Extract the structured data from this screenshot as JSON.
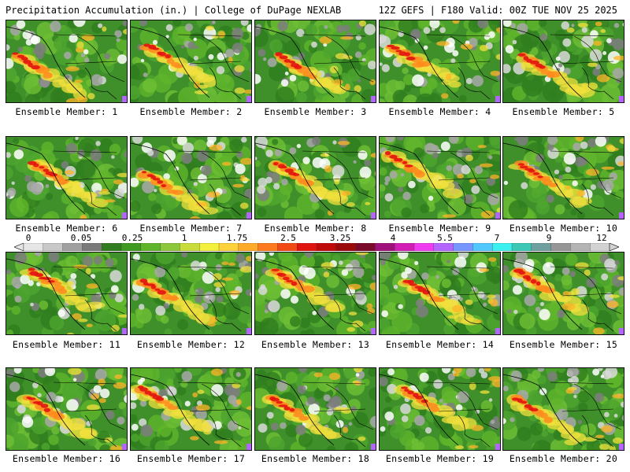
{
  "header": {
    "left": "Precipitation Accumulation (in.) | College of DuPage NEXLAB",
    "right": "12Z GEFS | F180 Valid: 00Z TUE NOV 25 2025"
  },
  "panels": [
    {
      "label": "Ensemble Member: 1"
    },
    {
      "label": "Ensemble Member: 2"
    },
    {
      "label": "Ensemble Member: 3"
    },
    {
      "label": "Ensemble Member: 4"
    },
    {
      "label": "Ensemble Member: 5"
    },
    {
      "label": "Ensemble Member: 6"
    },
    {
      "label": "Ensemble Member: 7"
    },
    {
      "label": "Ensemble Member: 8"
    },
    {
      "label": "Ensemble Member: 9"
    },
    {
      "label": "Ensemble Member: 10"
    },
    {
      "label": "Ensemble Member: 11"
    },
    {
      "label": "Ensemble Member: 12"
    },
    {
      "label": "Ensemble Member: 13"
    },
    {
      "label": "Ensemble Member: 14"
    },
    {
      "label": "Ensemble Member: 15"
    },
    {
      "label": "Ensemble Member: 16"
    },
    {
      "label": "Ensemble Member: 17"
    },
    {
      "label": "Ensemble Member: 18"
    },
    {
      "label": "Ensemble Member: 19"
    },
    {
      "label": "Ensemble Member: 20"
    }
  ],
  "colorbar": {
    "tick_labels": [
      "0",
      "0.05",
      "0.25",
      "1",
      "1.75",
      "2.5",
      "3.25",
      "4",
      "5.5",
      "7",
      "9",
      "12"
    ],
    "colors": [
      "#e6e6e6",
      "#c8c8c8",
      "#a0a0a0",
      "#7a7a7a",
      "#2f7d1e",
      "#3f9a22",
      "#5fb52a",
      "#8cc63a",
      "#c8dc3c",
      "#f2f03c",
      "#ffd23c",
      "#ffaa28",
      "#ff7a1e",
      "#f24a14",
      "#e0140f",
      "#c00a0a",
      "#9a0a0a",
      "#7a0a2a",
      "#a0107a",
      "#d21eb4",
      "#f03cf0",
      "#b464ff",
      "#7896ff",
      "#50c8ff",
      "#3cf0f0",
      "#3cc8b4",
      "#6ea0a0",
      "#969696",
      "#b4b4b4",
      "#d2d2d2"
    ]
  }
}
